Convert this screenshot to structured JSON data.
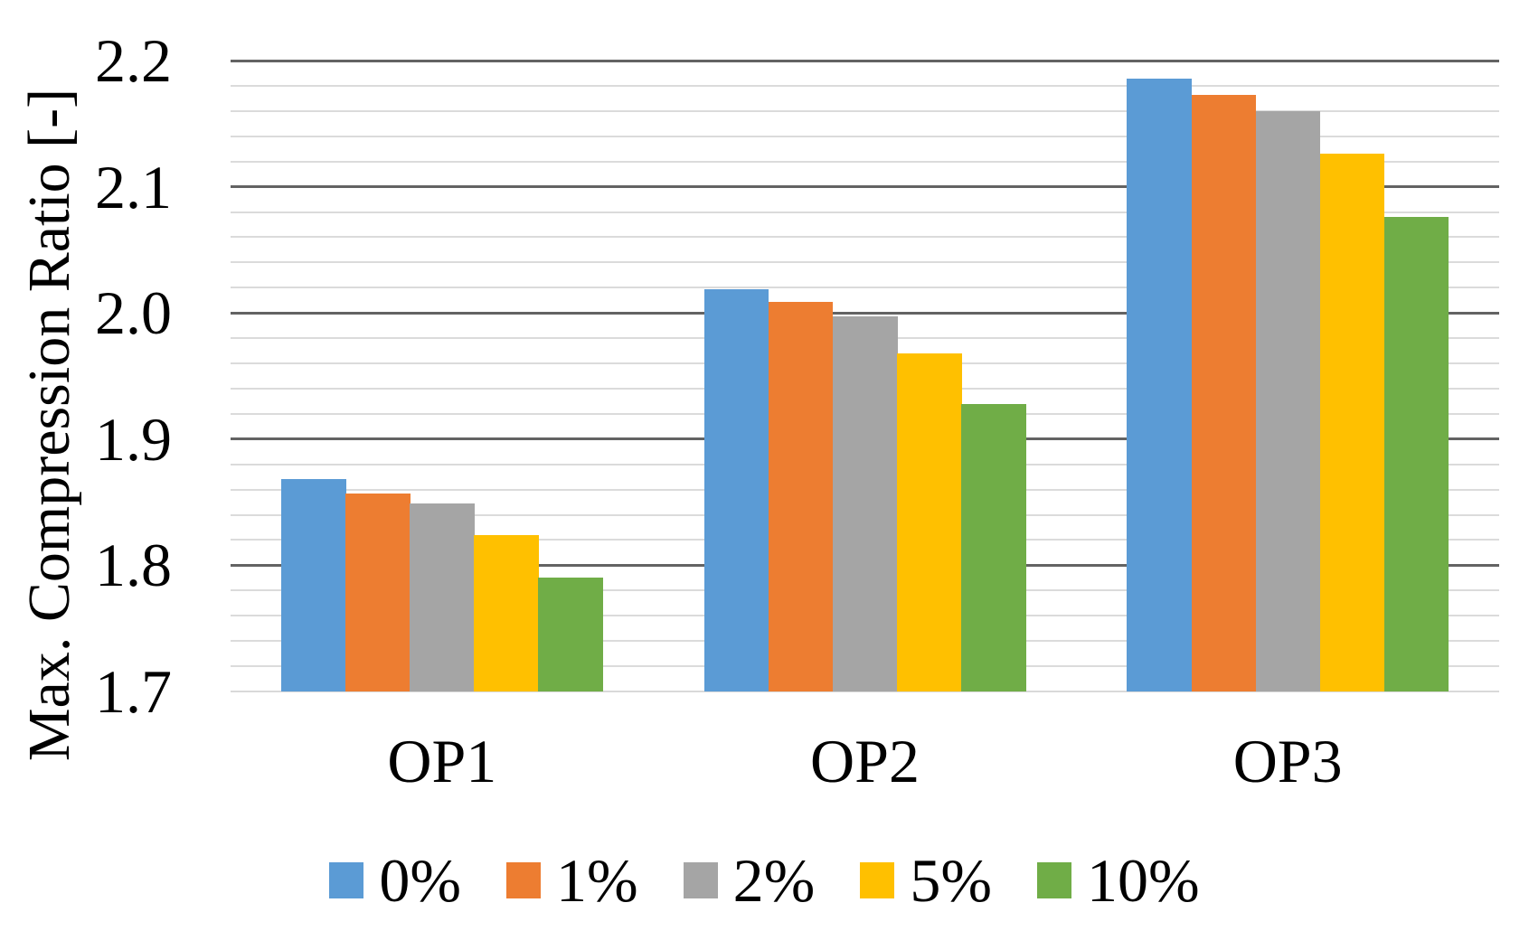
{
  "chart_data": {
    "type": "bar",
    "title": "",
    "xlabel": "",
    "ylabel": "Max. Compression Ratio [-]",
    "categories": [
      "OP1",
      "OP2",
      "OP3"
    ],
    "series": [
      {
        "name": "0%",
        "color": "#5B9BD5",
        "values": [
          1.868,
          2.019,
          2.186
        ]
      },
      {
        "name": "1%",
        "color": "#ED7D31",
        "values": [
          1.857,
          2.009,
          2.173
        ]
      },
      {
        "name": "2%",
        "color": "#A5A5A5",
        "values": [
          1.849,
          1.997,
          2.16
        ]
      },
      {
        "name": "5%",
        "color": "#FFC000",
        "values": [
          1.824,
          1.968,
          2.126
        ]
      },
      {
        "name": "10%",
        "color": "#70AD47",
        "values": [
          1.79,
          1.928,
          2.076
        ]
      }
    ],
    "ylim": [
      1.7,
      2.2
    ],
    "yticks": [
      1.7,
      1.8,
      1.9,
      2.0,
      2.1,
      2.2
    ],
    "ytick_labels": [
      "1.7",
      "1.8",
      "1.9",
      "2.0",
      "2.1",
      "2.2"
    ],
    "minor_gridline_step": 0.02,
    "major_gridline_step": 0.1,
    "grid": "horizontal major (dark) + minor (light), gridlines behind bars",
    "legend_position": "bottom",
    "legend_entries": [
      "0%",
      "1%",
      "2%",
      "5%",
      "10%"
    ]
  },
  "colors": {
    "background": "#FFFFFF",
    "text": "#000000",
    "major_gridline": "#636363",
    "minor_gridline": "#DBDBDB",
    "axis_baseline": "#D9D9D9"
  }
}
